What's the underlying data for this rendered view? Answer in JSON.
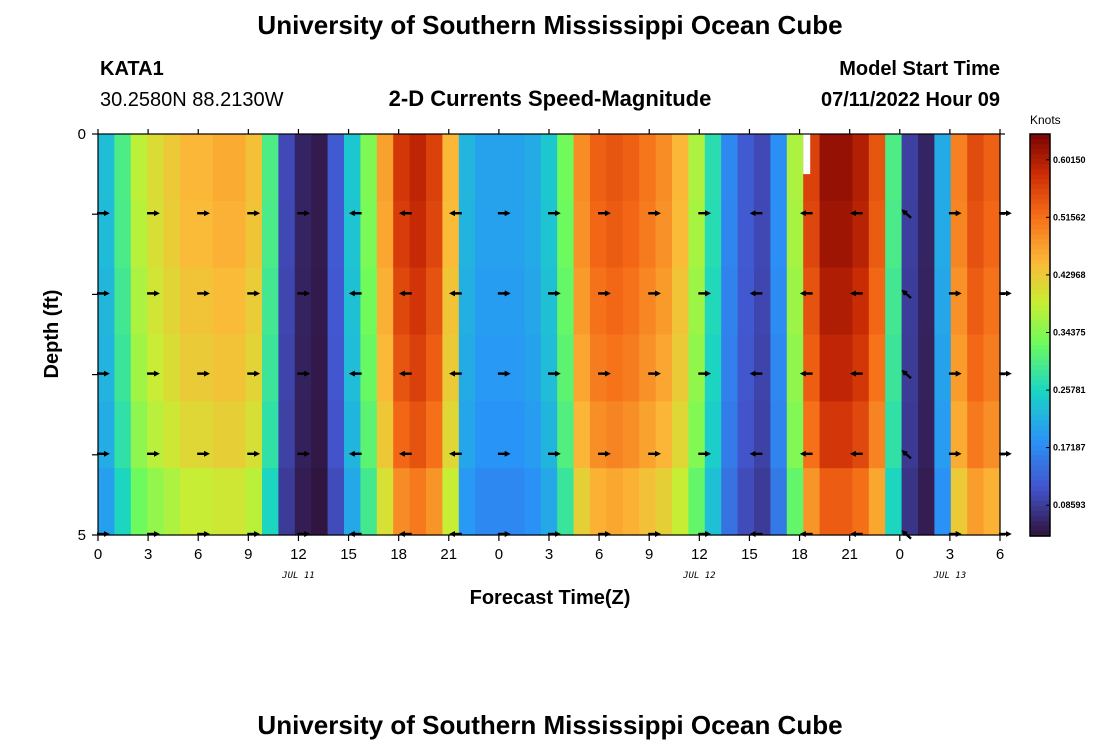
{
  "header": {
    "title": "University of Southern Mississippi Ocean Cube",
    "station": "KATA1",
    "coords": "30.2580N  88.2130W",
    "subtitle": "2-D Currents Speed-Magnitude",
    "model_label": "Model Start Time",
    "model_time": "07/11/2022 Hour 09"
  },
  "footer": {
    "title": "University of Southern Mississippi Ocean Cube"
  },
  "chart_data": {
    "type": "heatmap",
    "title": "2-D Currents Speed-Magnitude",
    "xlabel": "Forecast Time(Z)",
    "ylabel": "Depth (ft)",
    "x_tick_labels": [
      "0",
      "3",
      "6",
      "9",
      "12",
      "15",
      "18",
      "21",
      "0",
      "3",
      "6",
      "9",
      "12",
      "15",
      "18",
      "21",
      "0",
      "3",
      "6"
    ],
    "x_start_hour": 0,
    "x_end_hour": 54,
    "date_labels": [
      {
        "label": "JUL 11",
        "hour": 12
      },
      {
        "label": "JUL 12",
        "hour": 36
      },
      {
        "label": "JUL 13",
        "hour": 51
      }
    ],
    "y_tick_labels": [
      "0",
      "5"
    ],
    "ylim": [
      0,
      5
    ],
    "depth_levels": [
      0,
      1,
      2,
      3,
      4,
      5
    ],
    "colorbar": {
      "units": "Knots",
      "min": 0.04,
      "max": 0.64,
      "tick_labels": [
        "0.60150",
        "0.51562",
        "0.42968",
        "0.34375",
        "0.25781",
        "0.17187",
        "0.08593"
      ],
      "tick_values": [
        0.6015,
        0.51562,
        0.42968,
        0.34375,
        0.25781,
        0.17187,
        0.08593
      ]
    },
    "speed_by_hour": [
      0.23,
      0.3,
      0.38,
      0.41,
      0.43,
      0.45,
      0.45,
      0.46,
      0.46,
      0.44,
      0.3,
      0.1,
      0.06,
      0.05,
      0.12,
      0.24,
      0.34,
      0.47,
      0.57,
      0.59,
      0.56,
      0.45,
      0.22,
      0.2,
      0.2,
      0.2,
      0.21,
      0.24,
      0.33,
      0.49,
      0.53,
      0.54,
      0.53,
      0.51,
      0.49,
      0.45,
      0.37,
      0.27,
      0.17,
      0.12,
      0.1,
      0.18,
      0.37,
      0.56,
      0.62,
      0.62,
      0.6,
      0.54,
      0.3,
      0.09,
      0.06,
      0.21,
      0.5,
      0.55,
      0.53
    ],
    "depth_factor": [
      1.0,
      0.99,
      0.97,
      0.95,
      0.92,
      0.86
    ],
    "arrow_times": [
      0,
      3,
      6,
      9,
      12,
      15,
      18,
      21,
      24,
      27,
      30,
      33,
      36,
      39,
      42,
      45,
      48,
      51,
      54
    ],
    "arrow_depths": [
      1,
      2,
      3,
      4,
      5
    ],
    "arrow_directions": [
      "E",
      "E",
      "E",
      "E",
      "E",
      "W",
      "W",
      "W",
      "E",
      "E",
      "E",
      "E",
      "E",
      "W",
      "W",
      "W",
      "NW",
      "E",
      "E"
    ],
    "annotations": [
      {
        "label": "missing data",
        "hour": 42.4,
        "depth_range": [
          0,
          0.5
        ]
      }
    ]
  }
}
